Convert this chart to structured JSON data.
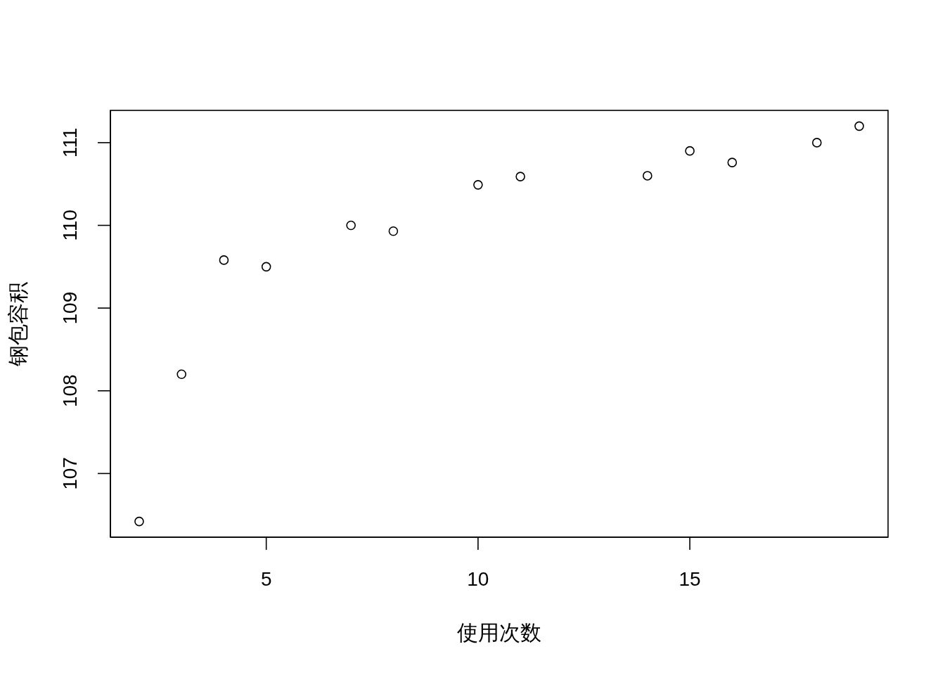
{
  "chart_data": {
    "type": "scatter",
    "xlabel": "使用次数",
    "ylabel": "钢包容积",
    "x": [
      2,
      3,
      4,
      5,
      7,
      8,
      10,
      11,
      14,
      15,
      16,
      18,
      19
    ],
    "values": [
      106.42,
      108.2,
      109.58,
      109.5,
      110.0,
      109.93,
      110.49,
      110.59,
      110.6,
      110.9,
      110.76,
      111.0,
      111.2
    ],
    "color": "#000000",
    "marker": "circle",
    "xlim": [
      1.32,
      19.68
    ],
    "ylim": [
      106.23,
      111.39
    ],
    "xticks": [
      5,
      10,
      15
    ],
    "yticks": [
      107,
      108,
      109,
      110,
      111
    ]
  }
}
